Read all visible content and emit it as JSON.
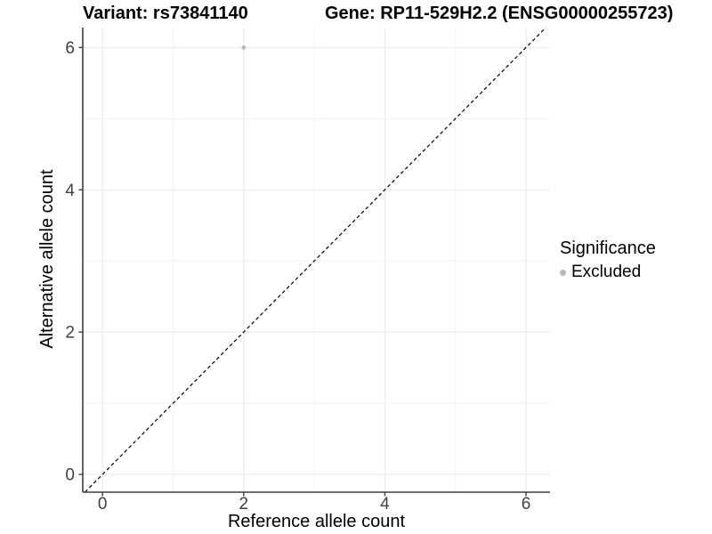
{
  "chart_data": {
    "type": "scatter",
    "title_left": "Variant: rs73841140",
    "title_right": "Gene: RP11-529H2.2 (ENSG00000255723)",
    "xlabel": "Reference allele count",
    "ylabel": "Alternative allele count",
    "xlim": [
      -0.28,
      6.34
    ],
    "ylim": [
      -0.25,
      6.28
    ],
    "xticks": [
      0,
      2,
      4,
      6
    ],
    "yticks": [
      0,
      2,
      4,
      6
    ],
    "minor_xticks": [
      1,
      3,
      5
    ],
    "minor_yticks": [
      1,
      3,
      5
    ],
    "grid": true,
    "point_radius": 2.4,
    "series": [
      {
        "name": "Excluded",
        "color": "#b9b9b9",
        "points": [
          {
            "x": 2,
            "y": 6
          }
        ]
      }
    ],
    "identity_line": {
      "style": "dashed",
      "color": "#000000",
      "from": [
        -0.25,
        -0.25
      ],
      "to": [
        6.28,
        6.28
      ]
    },
    "legend": {
      "title": "Significance",
      "position": "right",
      "entries": [
        {
          "label": "Excluded",
          "color": "#b9b9b9",
          "marker": "circle"
        }
      ]
    },
    "colors": {
      "major_grid": "#e9e9e9",
      "minor_grid": "#f3f3f3",
      "axis_line": "#3d3d3d",
      "tick_label": "#404040"
    }
  }
}
